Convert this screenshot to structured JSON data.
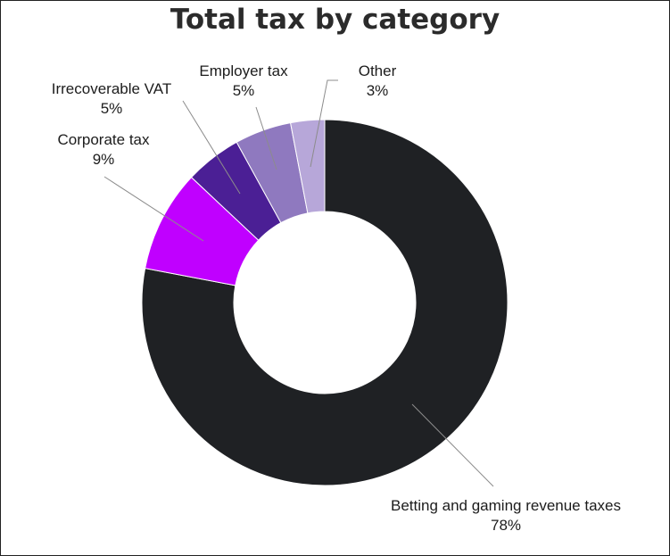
{
  "chart_data": {
    "type": "pie",
    "title": "Total tax by category",
    "donut": true,
    "slices": [
      {
        "label": "Betting and gaming revenue taxes",
        "value": 78,
        "value_label": "78%",
        "color": "#1f2124"
      },
      {
        "label": "Corporate tax",
        "value": 9,
        "value_label": "9%",
        "color": "#c000ff"
      },
      {
        "label": "Irrecoverable VAT",
        "value": 5,
        "value_label": "5%",
        "color": "#4b1f95"
      },
      {
        "label": "Employer tax",
        "value": 5,
        "value_label": "5%",
        "color": "#8f79bf"
      },
      {
        "label": "Other",
        "value": 3,
        "value_label": "3%",
        "color": "#b7a7d9"
      }
    ]
  }
}
